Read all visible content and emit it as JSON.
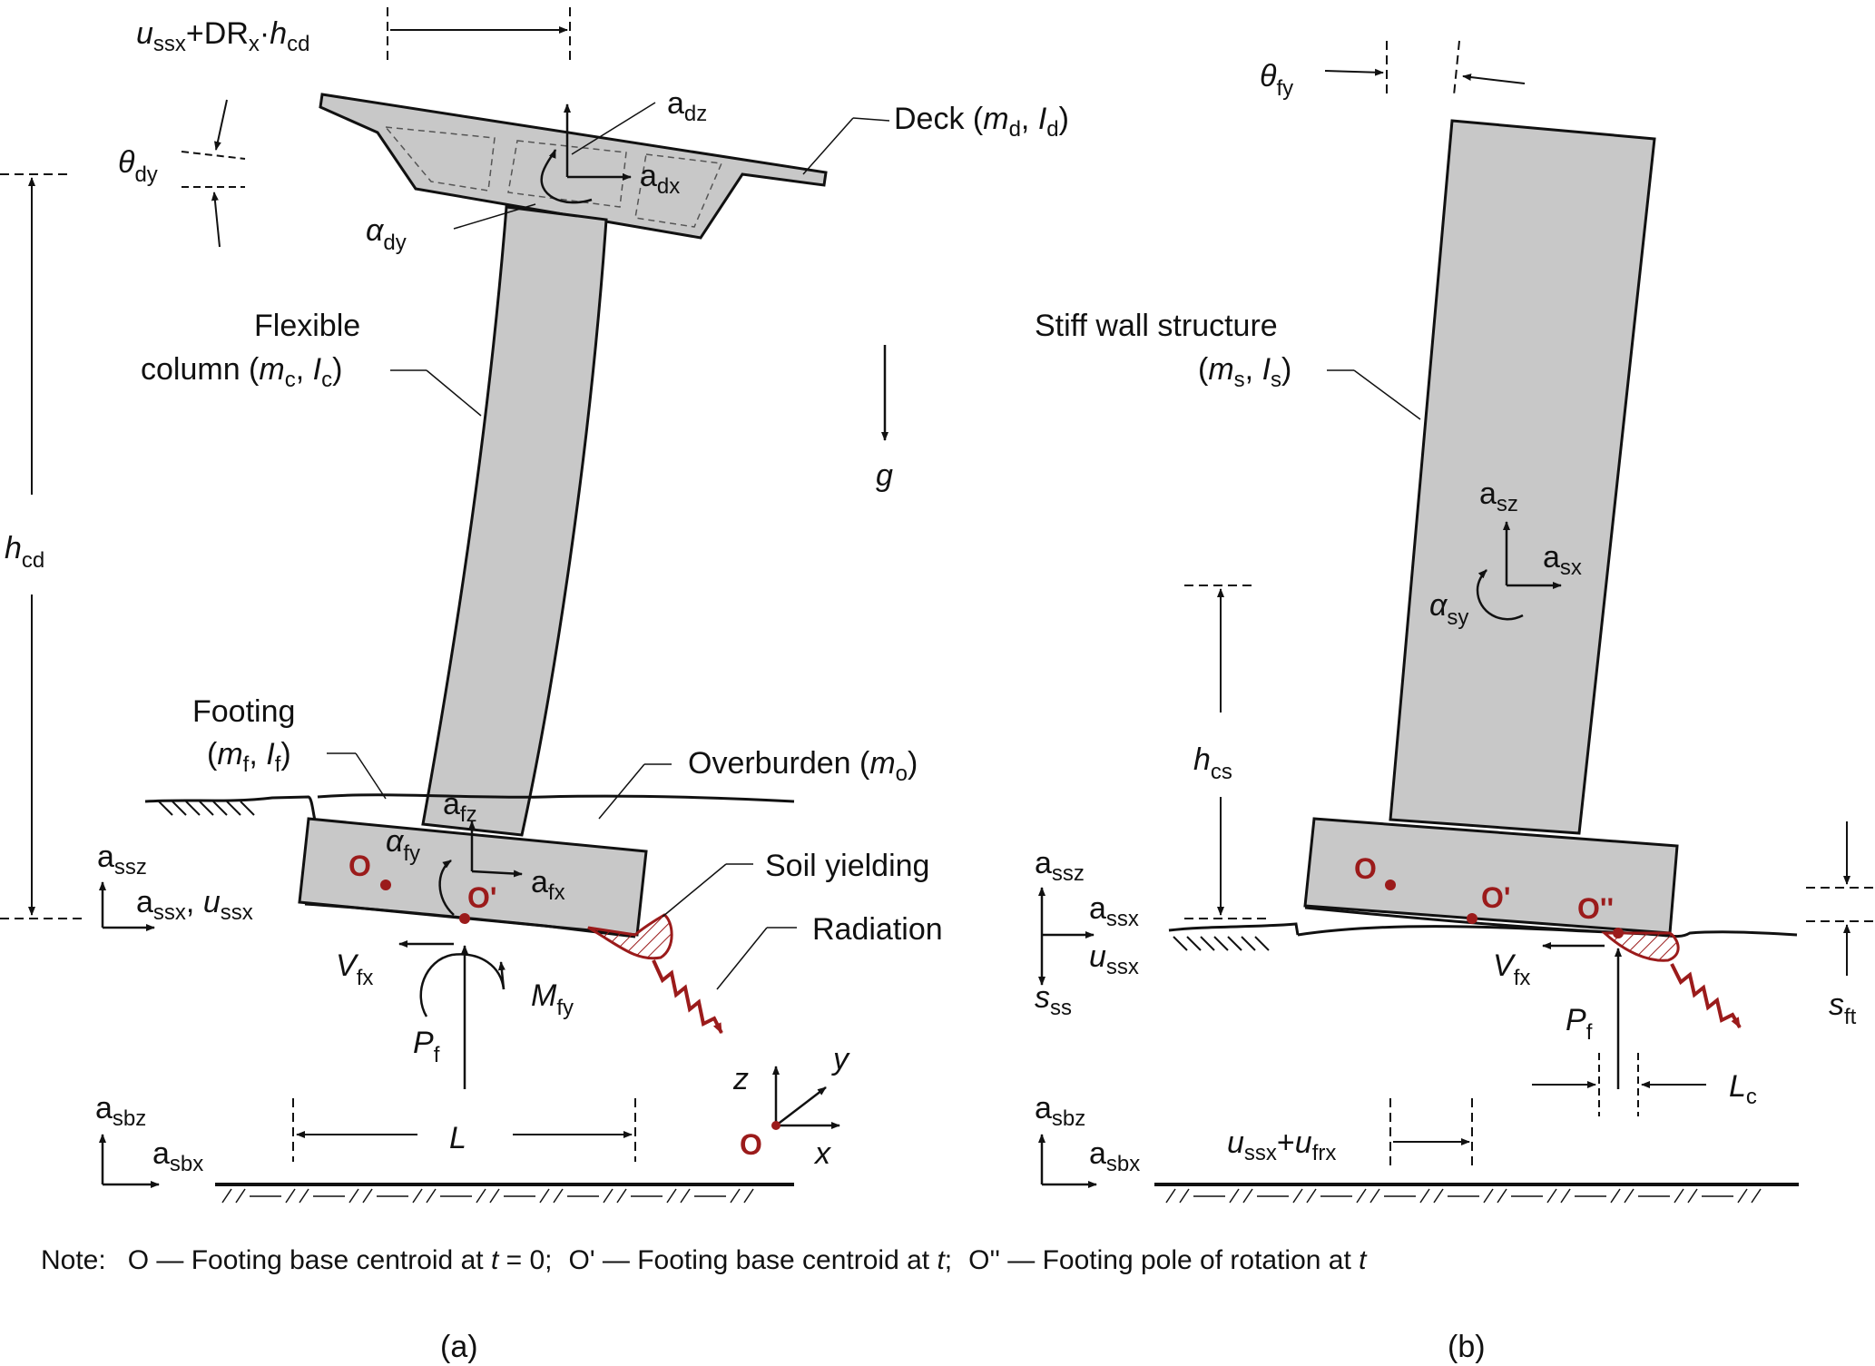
{
  "colors": {
    "body": "#c8c8c8",
    "ink": "#111111",
    "accent": "#9b1b1b",
    "background": "#ffffff"
  },
  "panel_a": {
    "caption": "(a)",
    "deck": {
      "label": "Deck (",
      "m": "m",
      "m_sub": "d",
      "comma": ", ",
      "I": "I",
      "I_sub": "d",
      "close": ")"
    },
    "column": {
      "line1": "Flexible",
      "line2": "column (",
      "m": "m",
      "m_sub": "c",
      "comma": ", ",
      "I": "I",
      "I_sub": "c",
      "close": ")"
    },
    "footing": {
      "line1": "Footing",
      "open": "(",
      "m": "m",
      "m_sub": "f",
      "comma": ", ",
      "I": "I",
      "I_sub": "f",
      "close": ")"
    },
    "overburden": {
      "label": "Overburden (",
      "m": "m",
      "m_sub": "o",
      "close": ")"
    },
    "soil_yielding": "Soil yielding",
    "radiation": "Radiation",
    "drift": {
      "u": "u",
      "u_sub": "ssx",
      "plus": "+DR",
      "dr_sub": "x",
      "dot": "·",
      "h": "h",
      "h_sub": "cd"
    },
    "theta": {
      "sym": "θ",
      "sub": "dy"
    },
    "h": {
      "sym": "h",
      "sub": "cd"
    },
    "alpha_dy": {
      "sym": "α",
      "sub": "dy"
    },
    "a_dz": {
      "sym": "a",
      "sub": "dz"
    },
    "a_dx": {
      "sym": "a",
      "sub": "dx"
    },
    "g": "g",
    "a_fz": {
      "sym": "a",
      "sub": "fz"
    },
    "a_fx": {
      "sym": "a",
      "sub": "fx"
    },
    "alpha_fy": {
      "sym": "α",
      "sub": "fy"
    },
    "a_ssz": {
      "sym": "a",
      "sub": "ssz"
    },
    "a_ssx": {
      "sym": "a",
      "sub": "ssx",
      "comma": ", ",
      "u": "u",
      "u_sub": "ssx"
    },
    "V": {
      "sym": "V",
      "sub": "fx"
    },
    "M": {
      "sym": "M",
      "sub": "fy"
    },
    "P": {
      "sym": "P",
      "sub": "f"
    },
    "L": "L",
    "a_sbz": {
      "sym": "a",
      "sub": "sbz"
    },
    "a_sbx": {
      "sym": "a",
      "sub": "sbx"
    },
    "O": "O",
    "O_prime": "O'",
    "axes": {
      "x": "x",
      "y": "y",
      "z": "z",
      "origin": "O"
    }
  },
  "panel_b": {
    "caption": "(b)",
    "wall": {
      "line1": "Stiff wall structure",
      "open": "(",
      "m": "m",
      "m_sub": "s",
      "comma": ", ",
      "I": "I",
      "I_sub": "s",
      "close": ")"
    },
    "theta": {
      "sym": "θ",
      "sub": "fy"
    },
    "a_sz": {
      "sym": "a",
      "sub": "sz"
    },
    "a_sx": {
      "sym": "a",
      "sub": "sx"
    },
    "alpha_sy": {
      "sym": "α",
      "sub": "sy"
    },
    "h": {
      "sym": "h",
      "sub": "cs"
    },
    "a_ssz": {
      "sym": "a",
      "sub": "ssz"
    },
    "a_ssx": {
      "sym": "a",
      "sub": "ssx"
    },
    "u_ssx": {
      "sym": "u",
      "sub": "ssx"
    },
    "s_ss": {
      "sym": "s",
      "sub": "ss"
    },
    "s_ft": {
      "sym": "s",
      "sub": "ft"
    },
    "V": {
      "sym": "V",
      "sub": "fx"
    },
    "P": {
      "sym": "P",
      "sub": "f"
    },
    "L": {
      "sym": "L",
      "sub": "c"
    },
    "a_sbz": {
      "sym": "a",
      "sub": "sbz"
    },
    "a_sbx": {
      "sym": "a",
      "sub": "sbx"
    },
    "u_frx": {
      "u": "u",
      "u_sub": "ssx",
      "plus": "+",
      "u2": "u",
      "u2_sub": "frx"
    },
    "O": "O",
    "O_prime": "O'",
    "O_dprime": "O''"
  },
  "note": {
    "prefix": "Note:",
    "item1_pre": "O — Footing base centroid at ",
    "item1_var": "t",
    "item1_post": " = 0;",
    "item2_pre": "O' — Footing base centroid at ",
    "item2_var": "t",
    "item2_post": ";",
    "item3_pre": "O'' — Footing pole of rotation at ",
    "item3_var": "t"
  }
}
